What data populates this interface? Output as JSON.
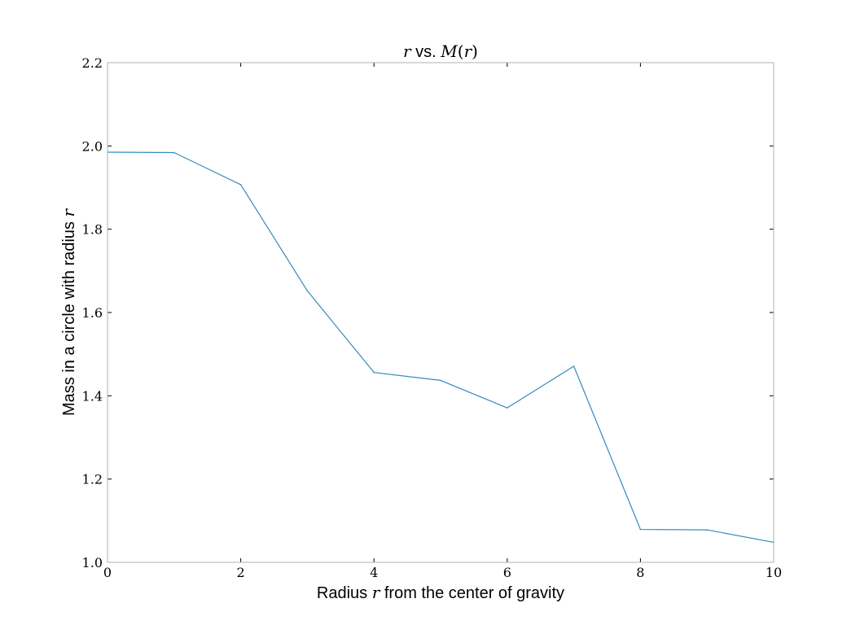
{
  "chart_data": {
    "type": "line",
    "title": {
      "parts": [
        {
          "text": "r",
          "style": "math"
        },
        {
          "text": " vs. ",
          "style": "text"
        },
        {
          "text": "M",
          "style": "math"
        },
        {
          "text": "(",
          "style": "math-up"
        },
        {
          "text": "r",
          "style": "math"
        },
        {
          "text": ")",
          "style": "math-up"
        }
      ]
    },
    "xlabel": {
      "parts": [
        {
          "text": "Radius ",
          "style": "text"
        },
        {
          "text": "r",
          "style": "math"
        },
        {
          "text": " from the center of gravity",
          "style": "text"
        }
      ]
    },
    "ylabel": {
      "parts": [
        {
          "text": "Mass in a circle with radius ",
          "style": "text"
        },
        {
          "text": "r",
          "style": "math"
        }
      ]
    },
    "xlim": [
      0,
      10
    ],
    "ylim": [
      1.0,
      2.2
    ],
    "xticks": [
      0,
      2,
      4,
      6,
      8,
      10
    ],
    "xtick_labels": [
      "0",
      "2",
      "4",
      "6",
      "8",
      "10"
    ],
    "yticks": [
      1.0,
      1.2,
      1.4,
      1.6,
      1.8,
      2.0,
      2.2
    ],
    "ytick_labels": [
      "1.0",
      "1.2",
      "1.4",
      "1.6",
      "1.8",
      "2.0",
      "2.2"
    ],
    "grid": false,
    "series": [
      {
        "color": "#348abd",
        "x": [
          0,
          1,
          2,
          3,
          4,
          5,
          6,
          7,
          8,
          9,
          10
        ],
        "y": [
          1.985,
          1.984,
          1.907,
          1.652,
          1.456,
          1.437,
          1.371,
          1.471,
          1.079,
          1.078,
          1.048
        ]
      }
    ]
  }
}
